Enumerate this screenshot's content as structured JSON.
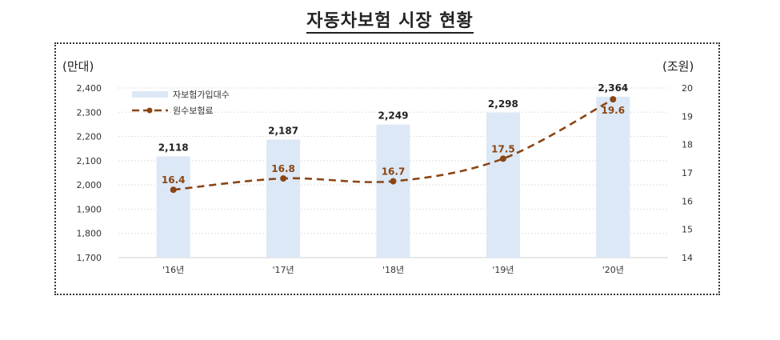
{
  "title": "자동차보험 시장 현황",
  "chart_data": {
    "type": "bar",
    "categories": [
      "'16년",
      "'17년",
      "'18년",
      "'19년",
      "'20년"
    ],
    "series": [
      {
        "name": "자보험가입대수",
        "type": "bar",
        "axis": "left",
        "values": [
          2118,
          2187,
          2249,
          2298,
          2364
        ],
        "labels": [
          "2,118",
          "2,187",
          "2,249",
          "2,298",
          "2,364"
        ],
        "color": "#dce8f5"
      },
      {
        "name": "원수보험료",
        "type": "line",
        "axis": "right",
        "values": [
          16.4,
          16.8,
          16.7,
          17.5,
          19.6
        ],
        "labels": [
          "16.4",
          "16.8",
          "16.7",
          "17.5",
          "19.6"
        ],
        "color": "#8b4513"
      }
    ],
    "y_left": {
      "unit": "(만대)",
      "ylim": [
        1700,
        2400
      ],
      "ticks": [
        "1,700",
        "1,800",
        "1,900",
        "2,000",
        "2,100",
        "2,200",
        "2,300",
        "2,400"
      ]
    },
    "y_right": {
      "unit": "(조원)",
      "ylim": [
        14,
        20
      ],
      "ticks": [
        "14",
        "15",
        "16",
        "17",
        "18",
        "19",
        "20"
      ]
    },
    "legend_position": "top-left",
    "grid": true
  }
}
